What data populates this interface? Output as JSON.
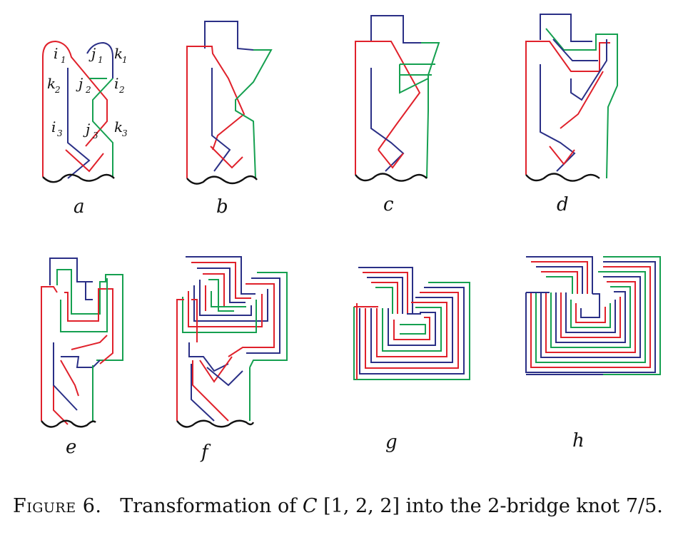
{
  "colors": {
    "red": "#e0212b",
    "blue": "#2a2f86",
    "green": "#15a050",
    "black": "#111111"
  },
  "panel_labels": [
    "a",
    "b",
    "c",
    "d",
    "e",
    "f",
    "g",
    "h"
  ],
  "arc_labels": {
    "i1": {
      "base": "i",
      "sub": "1"
    },
    "j1": {
      "base": "j",
      "sub": "1"
    },
    "k1": {
      "base": "k",
      "sub": "1"
    },
    "k2": {
      "base": "k",
      "sub": "2"
    },
    "j2": {
      "base": "j",
      "sub": "2"
    },
    "i2": {
      "base": "i",
      "sub": "2"
    },
    "i3": {
      "base": "i",
      "sub": "3"
    },
    "j3": {
      "base": "j",
      "sub": "3"
    },
    "k3": {
      "base": "k",
      "sub": "3"
    }
  },
  "caption": {
    "figure": "Figure 6.",
    "text_before": "Transformation of ",
    "math": "C",
    "text_after": " [1, 2, 2] into the 2-bridge knot 7/5."
  }
}
